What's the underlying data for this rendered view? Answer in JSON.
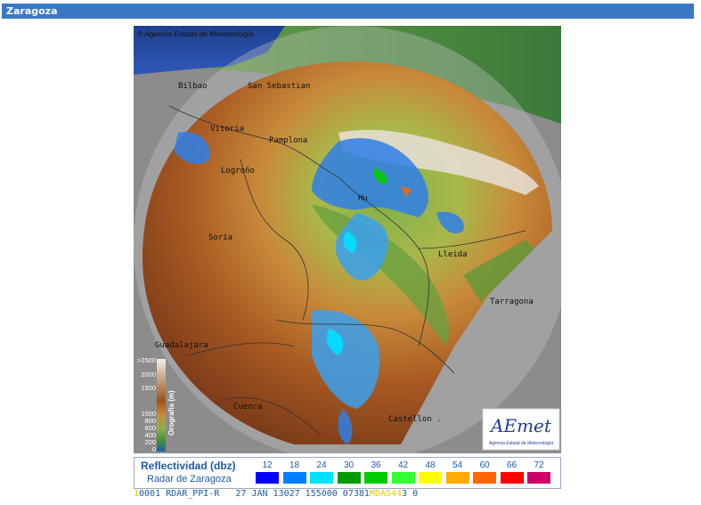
{
  "window": {
    "title": "Zaragoza"
  },
  "map": {
    "copyright": "© Agencia Estatal de Meteorología",
    "cities": [
      "Bilbao",
      "San Sebastian",
      "Vitoria",
      "Pamplona",
      "Logroño",
      "Hu",
      "Soria",
      "Lleida",
      "Tarragona",
      "Guadalajara",
      "Cuenca",
      "Castellon ."
    ],
    "logo": {
      "text": "AEmet",
      "subtitle": "Agencia Estatal de Meteorología"
    }
  },
  "orography_legend": {
    "title": "Orografía (m)",
    "levels": [
      ">2500",
      "2000",
      "1500",
      "1000",
      "800",
      "600",
      "400",
      "200",
      "0"
    ]
  },
  "reflectivity_legend": {
    "title": "Reflectividad (dbz)",
    "subtitle": "Radar de Zaragoza",
    "levels": [
      {
        "value": "12",
        "color": "#0000ff"
      },
      {
        "value": "18",
        "color": "#0080ff"
      },
      {
        "value": "24",
        "color": "#00e0ff"
      },
      {
        "value": "30",
        "color": "#009900"
      },
      {
        "value": "36",
        "color": "#00cc00"
      },
      {
        "value": "42",
        "color": "#33ff33"
      },
      {
        "value": "48",
        "color": "#ffff00"
      },
      {
        "value": "54",
        "color": "#ffaa00"
      },
      {
        "value": "60",
        "color": "#ff6600"
      },
      {
        "value": "66",
        "color": "#ff0000"
      },
      {
        "value": "72",
        "color": "#cc0066"
      }
    ]
  },
  "status_line": {
    "prefix": "1",
    "text": "0001 RDAR_PPI-R   27 JAN 13027 155000 07381",
    "highlight": "MDAS44",
    "suffix": "3 0"
  }
}
